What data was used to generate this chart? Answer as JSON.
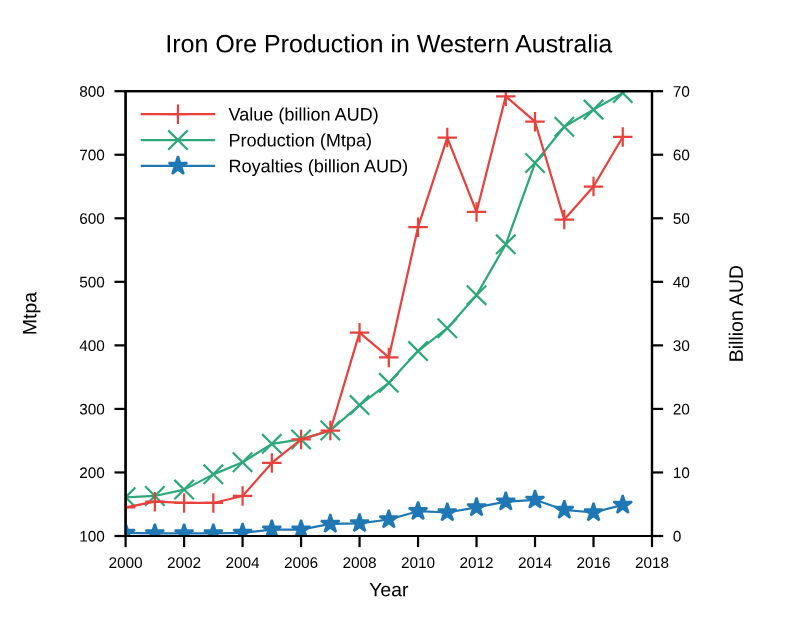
{
  "chart_data": {
    "type": "line",
    "title": "Iron Ore Production in Western Australia",
    "xlabel": "Year",
    "ylabel": "Mtpa",
    "y2label": "Billion AUD",
    "x": [
      2000,
      2001,
      2002,
      2003,
      2004,
      2005,
      2006,
      2007,
      2008,
      2009,
      2010,
      2011,
      2012,
      2013,
      2014,
      2015,
      2016,
      2017
    ],
    "series": [
      {
        "name": "Value (billion AUD)",
        "color": "#e8413c",
        "axis": "y2",
        "marker": "plus",
        "values": [
          4.5,
          5.4,
          5.2,
          5.2,
          6.3,
          11.5,
          15.2,
          16.6,
          32.0,
          28.1,
          48.6,
          62.7,
          51.0,
          69.2,
          65.2,
          49.8,
          55.0,
          62.8
        ]
      },
      {
        "name": "Production (Mtpa)",
        "color": "#2ca87a",
        "marker": "cross",
        "values": [
          161,
          163,
          173,
          197,
          216,
          245,
          252,
          266,
          306,
          341,
          391,
          427,
          479,
          559,
          687,
          744,
          771,
          797
        ]
      },
      {
        "name": "Royalties (billion AUD)",
        "color": "#1f78b4",
        "axis": "y2",
        "marker": "star",
        "values": [
          0.5,
          0.4,
          0.4,
          0.4,
          0.5,
          1.0,
          1.0,
          1.9,
          2.0,
          2.6,
          3.9,
          3.7,
          4.5,
          5.4,
          5.7,
          4.1,
          3.7,
          4.9
        ]
      }
    ],
    "xlim": [
      2000,
      2018
    ],
    "xticks": [
      2000,
      2002,
      2004,
      2006,
      2008,
      2010,
      2012,
      2014,
      2016,
      2018
    ],
    "ylim": [
      100,
      800
    ],
    "yticks": [
      100,
      200,
      300,
      400,
      500,
      600,
      700,
      800
    ],
    "y2lim": [
      0,
      70
    ],
    "y2ticks": [
      0,
      10,
      20,
      30,
      40,
      50,
      60,
      70
    ],
    "legend": "top left",
    "grid": false
  }
}
